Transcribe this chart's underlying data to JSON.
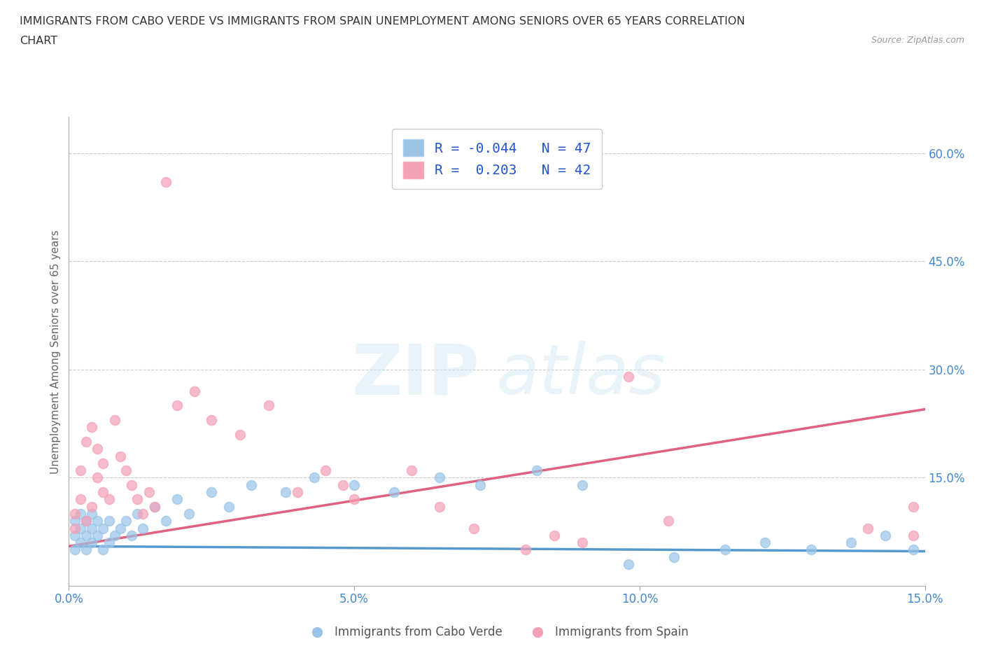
{
  "title_line1": "IMMIGRANTS FROM CABO VERDE VS IMMIGRANTS FROM SPAIN UNEMPLOYMENT AMONG SENIORS OVER 65 YEARS CORRELATION",
  "title_line2": "CHART",
  "source_text": "Source: ZipAtlas.com",
  "ylabel": "Unemployment Among Seniors over 65 years",
  "xlim": [
    0.0,
    0.15
  ],
  "ylim": [
    0.0,
    0.65
  ],
  "xtick_labels": [
    "0.0%",
    "5.0%",
    "10.0%",
    "15.0%"
  ],
  "xtick_vals": [
    0.0,
    0.05,
    0.1,
    0.15
  ],
  "ytick_labels": [
    "15.0%",
    "30.0%",
    "45.0%",
    "60.0%"
  ],
  "ytick_vals": [
    0.15,
    0.3,
    0.45,
    0.6
  ],
  "cabo_verde_color": "#99c4e8",
  "cabo_verde_line_color": "#5599cc",
  "spain_color": "#f4a0b5",
  "spain_line_color": "#e06080",
  "cabo_verde_R": "-0.044",
  "cabo_verde_N": "47",
  "spain_R": "0.203",
  "spain_N": "42",
  "legend_label_1": "Immigrants from Cabo Verde",
  "legend_label_2": "Immigrants from Spain",
  "watermark_zip": "ZIP",
  "watermark_atlas": "atlas",
  "background_color": "#ffffff",
  "grid_color": "#cccccc",
  "title_color": "#333333",
  "axis_label_color": "#666666",
  "tick_label_color": "#4488cc",
  "stat_color": "#2255cc",
  "cabo_verde_x": [
    0.001,
    0.001,
    0.001,
    0.002,
    0.002,
    0.002,
    0.003,
    0.003,
    0.003,
    0.004,
    0.004,
    0.004,
    0.005,
    0.005,
    0.006,
    0.006,
    0.007,
    0.007,
    0.008,
    0.009,
    0.01,
    0.011,
    0.012,
    0.013,
    0.015,
    0.017,
    0.019,
    0.021,
    0.025,
    0.028,
    0.032,
    0.038,
    0.043,
    0.05,
    0.057,
    0.065,
    0.072,
    0.082,
    0.09,
    0.098,
    0.106,
    0.115,
    0.122,
    0.13,
    0.137,
    0.143,
    0.148
  ],
  "cabo_verde_y": [
    0.05,
    0.07,
    0.09,
    0.06,
    0.08,
    0.1,
    0.05,
    0.07,
    0.09,
    0.06,
    0.08,
    0.1,
    0.07,
    0.09,
    0.05,
    0.08,
    0.06,
    0.09,
    0.07,
    0.08,
    0.09,
    0.07,
    0.1,
    0.08,
    0.11,
    0.09,
    0.12,
    0.1,
    0.13,
    0.11,
    0.14,
    0.13,
    0.15,
    0.14,
    0.13,
    0.15,
    0.14,
    0.16,
    0.14,
    0.03,
    0.04,
    0.05,
    0.06,
    0.05,
    0.06,
    0.07,
    0.05
  ],
  "spain_x": [
    0.001,
    0.001,
    0.002,
    0.002,
    0.003,
    0.003,
    0.004,
    0.004,
    0.005,
    0.005,
    0.006,
    0.006,
    0.007,
    0.008,
    0.009,
    0.01,
    0.011,
    0.012,
    0.013,
    0.014,
    0.015,
    0.017,
    0.019,
    0.022,
    0.025,
    0.03,
    0.035,
    0.04,
    0.045,
    0.048,
    0.05,
    0.06,
    0.065,
    0.071,
    0.08,
    0.085,
    0.09,
    0.098,
    0.105,
    0.14,
    0.148,
    0.148
  ],
  "spain_y": [
    0.08,
    0.1,
    0.12,
    0.16,
    0.09,
    0.2,
    0.11,
    0.22,
    0.15,
    0.19,
    0.13,
    0.17,
    0.12,
    0.23,
    0.18,
    0.16,
    0.14,
    0.12,
    0.1,
    0.13,
    0.11,
    0.56,
    0.25,
    0.27,
    0.23,
    0.21,
    0.25,
    0.13,
    0.16,
    0.14,
    0.12,
    0.16,
    0.11,
    0.08,
    0.05,
    0.07,
    0.06,
    0.29,
    0.09,
    0.08,
    0.07,
    0.11
  ],
  "cabo_verde_trend_x": [
    0.0,
    0.15
  ],
  "cabo_verde_trend_y": [
    0.055,
    0.048
  ],
  "spain_trend_x": [
    0.0,
    0.15
  ],
  "spain_trend_y": [
    0.055,
    0.245
  ]
}
